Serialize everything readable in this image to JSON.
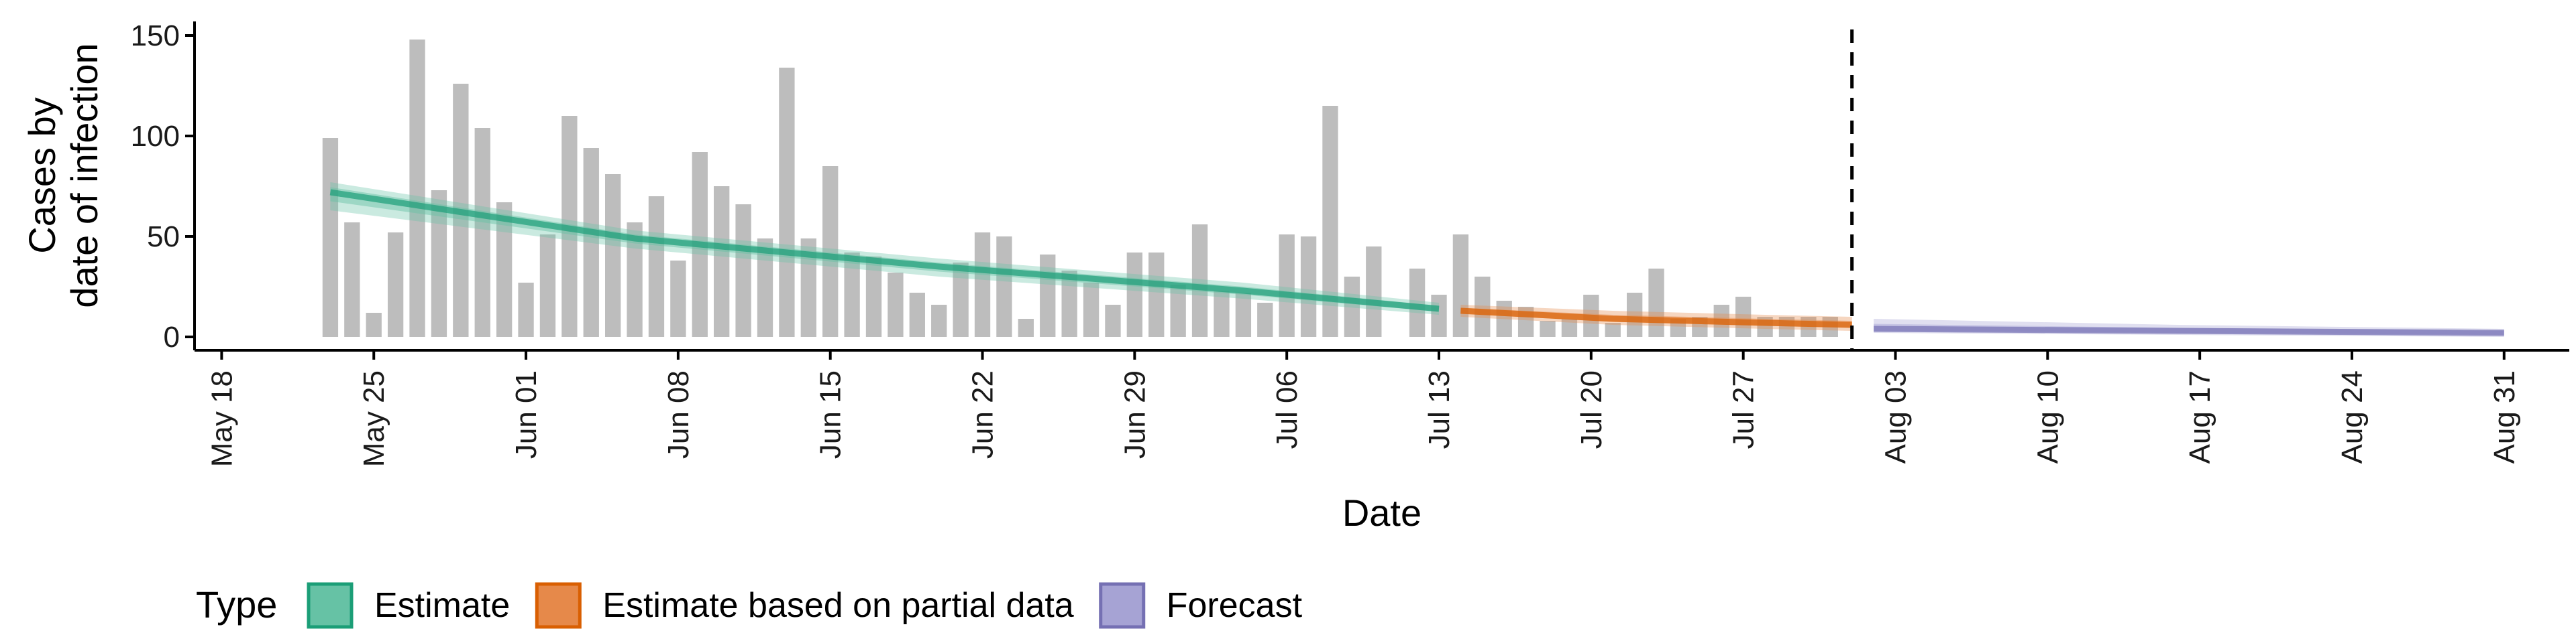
{
  "chart_data": {
    "type": "bar",
    "xlabel": "Date",
    "ylabel_lines": [
      "Cases by",
      "date of infection"
    ],
    "ylim": [
      0,
      157
    ],
    "y_ticks": [
      0,
      50,
      100,
      150
    ],
    "x_range": [
      "2020-05-17",
      "2020-09-03"
    ],
    "x_ticks": [
      {
        "date": "2020-05-18",
        "label": "May 18"
      },
      {
        "date": "2020-05-25",
        "label": "May 25"
      },
      {
        "date": "2020-06-01",
        "label": "Jun 01"
      },
      {
        "date": "2020-06-08",
        "label": "Jun 08"
      },
      {
        "date": "2020-06-15",
        "label": "Jun 15"
      },
      {
        "date": "2020-06-22",
        "label": "Jun 22"
      },
      {
        "date": "2020-06-29",
        "label": "Jun 29"
      },
      {
        "date": "2020-07-06",
        "label": "Jul 06"
      },
      {
        "date": "2020-07-13",
        "label": "Jul 13"
      },
      {
        "date": "2020-07-20",
        "label": "Jul 20"
      },
      {
        "date": "2020-07-27",
        "label": "Jul 27"
      },
      {
        "date": "2020-08-03",
        "label": "Aug 03"
      },
      {
        "date": "2020-08-10",
        "label": "Aug 10"
      },
      {
        "date": "2020-08-17",
        "label": "Aug 17"
      },
      {
        "date": "2020-08-24",
        "label": "Aug 24"
      },
      {
        "date": "2020-08-31",
        "label": "Aug 31"
      }
    ],
    "vline_date": "2020-08-01",
    "bars": {
      "start_date": "2020-05-23",
      "color": "#bdbdbd",
      "values": [
        99,
        57,
        12,
        52,
        148,
        73,
        126,
        104,
        67,
        27,
        51,
        110,
        94,
        81,
        57,
        70,
        38,
        92,
        75,
        66,
        49,
        134,
        49,
        85,
        42,
        40,
        32,
        22,
        16,
        37,
        52,
        50,
        9,
        41,
        33,
        27,
        16,
        42,
        42,
        26,
        56,
        23,
        22,
        17,
        51,
        50,
        115,
        30,
        45,
        0,
        34,
        21,
        51,
        30,
        18,
        15,
        8,
        9,
        21,
        7,
        22,
        34,
        9,
        10,
        16,
        20,
        10,
        10,
        10,
        10
      ]
    },
    "series": [
      {
        "type": "Estimate",
        "color": "#1b9e77",
        "fill": "#66c2a5",
        "x": [
          "2020-05-23",
          "2020-06-06",
          "2020-06-20",
          "2020-07-04",
          "2020-07-13"
        ],
        "median": [
          72,
          49,
          35,
          23,
          14
        ],
        "lower": [
          63,
          44,
          30,
          19,
          11
        ],
        "upper": [
          77,
          53,
          39,
          27,
          17
        ]
      },
      {
        "type": "Estimate based on partial data",
        "color": "#d95f02",
        "fill": "#e6894a",
        "x": [
          "2020-07-14",
          "2020-07-21",
          "2020-07-28",
          "2020-08-01"
        ],
        "median": [
          13,
          9,
          7,
          6
        ],
        "lower": [
          10,
          6,
          4,
          3
        ],
        "upper": [
          16,
          13,
          11,
          10
        ]
      },
      {
        "type": "Forecast",
        "color": "#7570b3",
        "fill": "#a6a3d4",
        "x": [
          "2020-08-02",
          "2020-08-16",
          "2020-08-31"
        ],
        "median": [
          4,
          3,
          2
        ],
        "lower": [
          2,
          1,
          0
        ],
        "upper": [
          9,
          6,
          4
        ]
      }
    ],
    "legend": {
      "title": "Type",
      "placement": "bottom",
      "items": [
        "Estimate",
        "Estimate based on partial data",
        "Forecast"
      ]
    },
    "grid": false
  }
}
